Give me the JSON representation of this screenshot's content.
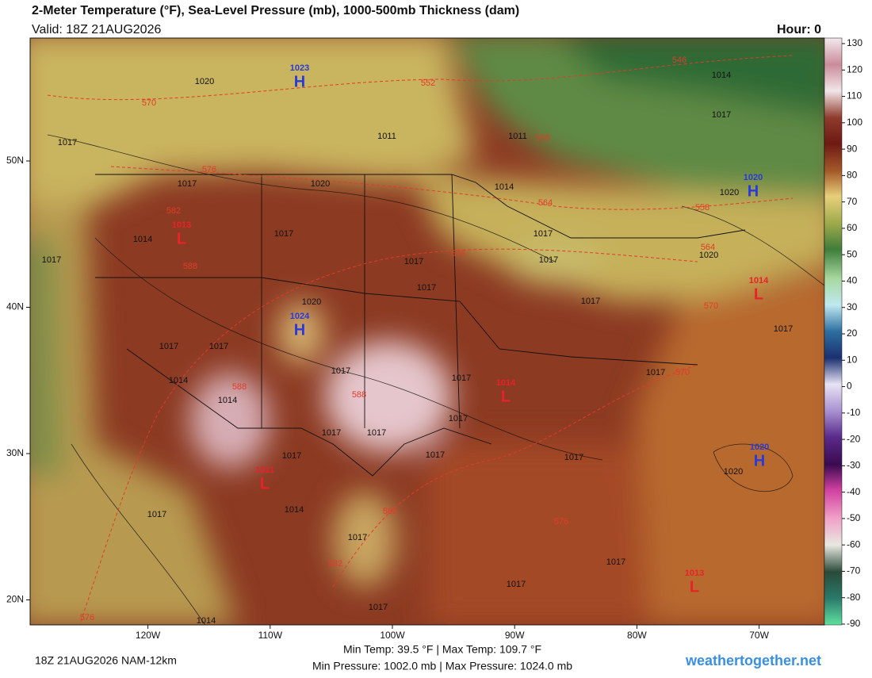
{
  "header": {
    "title": "2-Meter Temperature (°F), Sea-Level Pressure (mb), 1000-500mb Thickness (dam)",
    "valid": "Valid: 18Z 21AUG2026",
    "hour": "Hour: 0"
  },
  "map": {
    "lat_ticks": [
      {
        "value": 50,
        "label": "50N"
      },
      {
        "value": 40,
        "label": "40N"
      },
      {
        "value": 30,
        "label": "30N"
      },
      {
        "value": 20,
        "label": "20N"
      }
    ],
    "lon_ticks": [
      {
        "value": -120,
        "label": "120W"
      },
      {
        "value": -110,
        "label": "110W"
      },
      {
        "value": -100,
        "label": "100W"
      },
      {
        "value": -90,
        "label": "90W"
      },
      {
        "value": -80,
        "label": "80W"
      },
      {
        "value": -70,
        "label": "70W"
      }
    ],
    "pressure_centers": [
      {
        "letter": "H",
        "value": 1023
      },
      {
        "letter": "L",
        "value": 1013
      },
      {
        "letter": "H",
        "value": 1024
      },
      {
        "letter": "L",
        "value": 1014
      },
      {
        "letter": "L",
        "value": 1011
      },
      {
        "letter": "L",
        "value": 1013
      },
      {
        "letter": "H",
        "value": 1020
      },
      {
        "letter": "L",
        "value": 1014
      },
      {
        "letter": "H",
        "value": 1020
      }
    ],
    "isobar_labels": [
      1020,
      1017,
      1017,
      1020,
      1014,
      1017,
      1017,
      1017,
      1017,
      1020,
      1017,
      1017,
      1017,
      1014,
      1014,
      1017,
      1017,
      1017,
      1017,
      1017,
      1017,
      1014,
      1017,
      1017,
      1017,
      1017,
      1017,
      1017,
      1017,
      1014,
      1011,
      1011,
      1014,
      1017,
      1020,
      1020,
      1017,
      1020,
      1017,
      1017,
      1017,
      1014
    ],
    "thickness_labels": [
      570,
      576,
      552,
      558,
      546,
      564,
      558,
      576,
      564,
      570,
      582,
      588,
      588,
      588,
      570,
      582,
      582,
      576,
      576
    ]
  },
  "colorbar": {
    "lim": [
      -90,
      130
    ],
    "ticks": [
      130,
      120,
      110,
      100,
      90,
      80,
      70,
      60,
      50,
      40,
      30,
      20,
      10,
      0,
      -10,
      -20,
      -30,
      -40,
      -50,
      -60,
      -70,
      -80,
      -90
    ]
  },
  "footer": {
    "run": "18Z 21AUG2026 NAM-12km",
    "temp_range": "Min Temp:  39.5 °F | Max Temp: 109.7 °F",
    "pressure_range": "Min Pressure: 1002.0 mb | Max Pressure: 1024.0 mb",
    "site": "weathertogether.net"
  }
}
